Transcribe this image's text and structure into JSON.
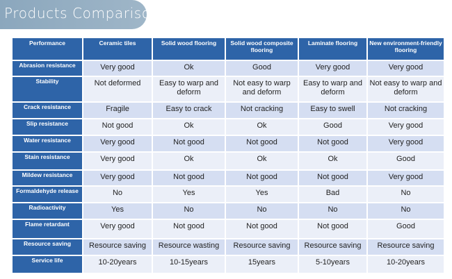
{
  "title": "Products Comparison",
  "headers": [
    "Performance",
    "Ceramic tiles",
    "Solid wood flooring",
    "Solid wood composite flooring",
    "Laminate flooring",
    "New environment-friendly flooring"
  ],
  "rows": [
    {
      "label": "Abrasion resistance",
      "values": [
        "Very good",
        "Ok",
        "Good",
        "Very good",
        "Very good"
      ]
    },
    {
      "label": "Stability",
      "values": [
        "Not deformed",
        "Easy to warp and deform",
        "Not easy to warp and deform",
        "Easy to warp and deform",
        "Not easy to warp and deform"
      ]
    },
    {
      "label": "Crack resistance",
      "values": [
        "Fragile",
        "Easy to crack",
        "Not cracking",
        "Easy to swell",
        "Not cracking"
      ]
    },
    {
      "label": "Slip resistance",
      "values": [
        "Not good",
        "Ok",
        "Ok",
        "Good",
        "Very good"
      ]
    },
    {
      "label": "Water resistance",
      "values": [
        "Very good",
        "Not good",
        "Not good",
        "Not good",
        "Very good"
      ]
    },
    {
      "label": "Stain resistance",
      "values": [
        "Very good",
        "Ok",
        "Ok",
        "Ok",
        "Good"
      ]
    },
    {
      "label": "Mildew resistance",
      "values": [
        "Very good",
        "Not good",
        "Not good",
        "Not good",
        "Very good"
      ]
    },
    {
      "label": "Formaldehyde release",
      "values": [
        "No",
        "Yes",
        "Yes",
        "Bad",
        "No"
      ]
    },
    {
      "label": "Radioactivity",
      "values": [
        "Yes",
        "No",
        "No",
        "No",
        "No"
      ]
    },
    {
      "label": "Flame retardant",
      "values": [
        "Very good",
        "Not good",
        "Not good",
        "Not good",
        "Good"
      ]
    },
    {
      "label": "Resource saving",
      "values": [
        "Resource saving",
        "Resource wasting",
        "Resource saving",
        "Resource saving",
        "Resource saving"
      ]
    },
    {
      "label": "Service life",
      "values": [
        "10-20years",
        "10-15years",
        "15years",
        "5-10years",
        "10-20years"
      ]
    }
  ],
  "colors": {
    "header_bg": "#2e64a8",
    "row_odd": "#d5def2",
    "row_even": "#ebeff8",
    "banner": "#9fb6c8"
  }
}
